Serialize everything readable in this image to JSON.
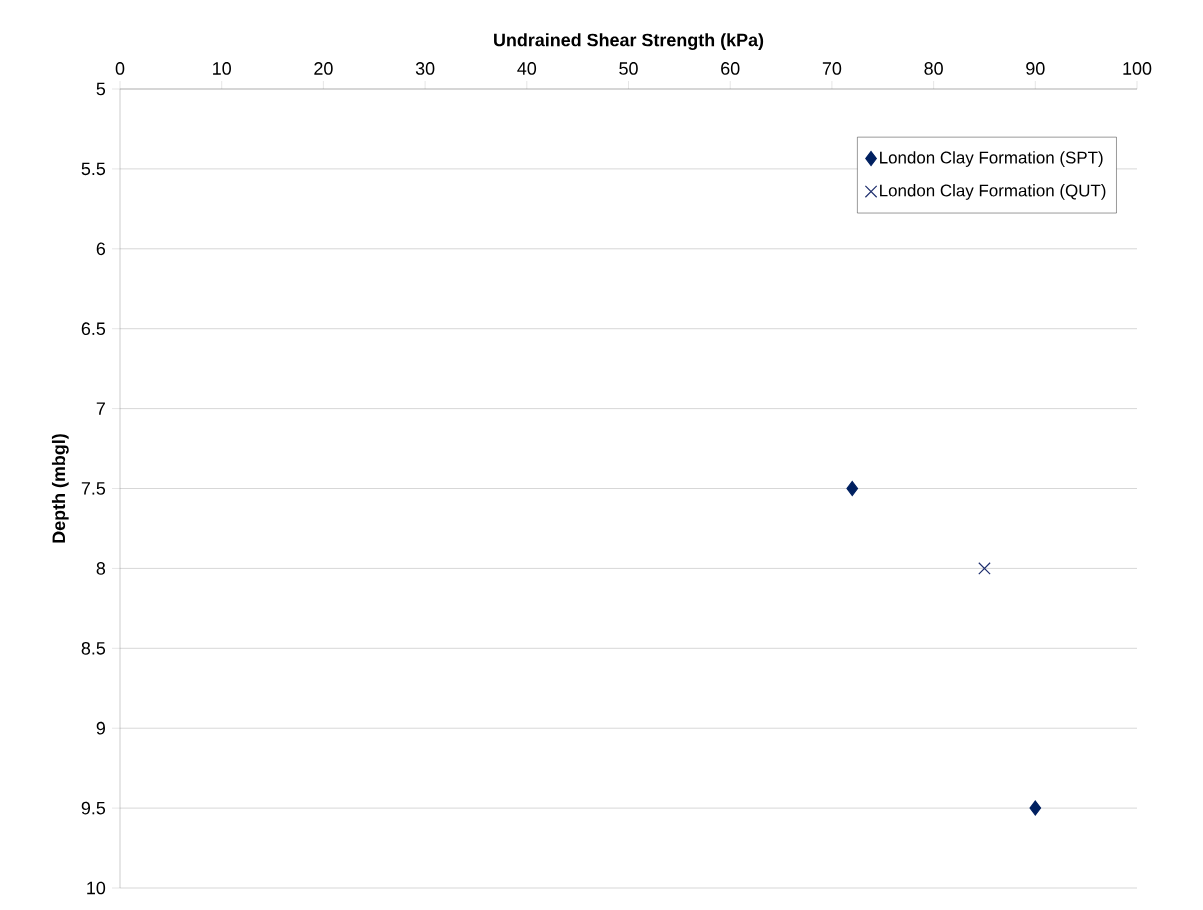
{
  "chart_data": {
    "type": "scatter",
    "xlabel": "Undrained Shear Strength (kPa)",
    "ylabel": "Depth (mbgl)",
    "xlim": [
      0,
      100
    ],
    "xticks": [
      0,
      10,
      20,
      30,
      40,
      50,
      60,
      70,
      80,
      90,
      100
    ],
    "ylim": [
      10,
      5
    ],
    "yticks": [
      5,
      5.5,
      6,
      6.5,
      7,
      7.5,
      8,
      8.5,
      9,
      9.5,
      10
    ],
    "grid": "y",
    "legend": "top right",
    "series": [
      {
        "name": "London Clay Formation (SPT)",
        "color": "#002060",
        "marker": "diamond",
        "x": [
          72,
          90
        ],
        "values": [
          7.5,
          9.5
        ]
      },
      {
        "name": "London Clay Formation (QUT)",
        "color": "#1f2f6e",
        "marker": "cross",
        "x": [
          85
        ],
        "values": [
          8
        ]
      }
    ]
  }
}
